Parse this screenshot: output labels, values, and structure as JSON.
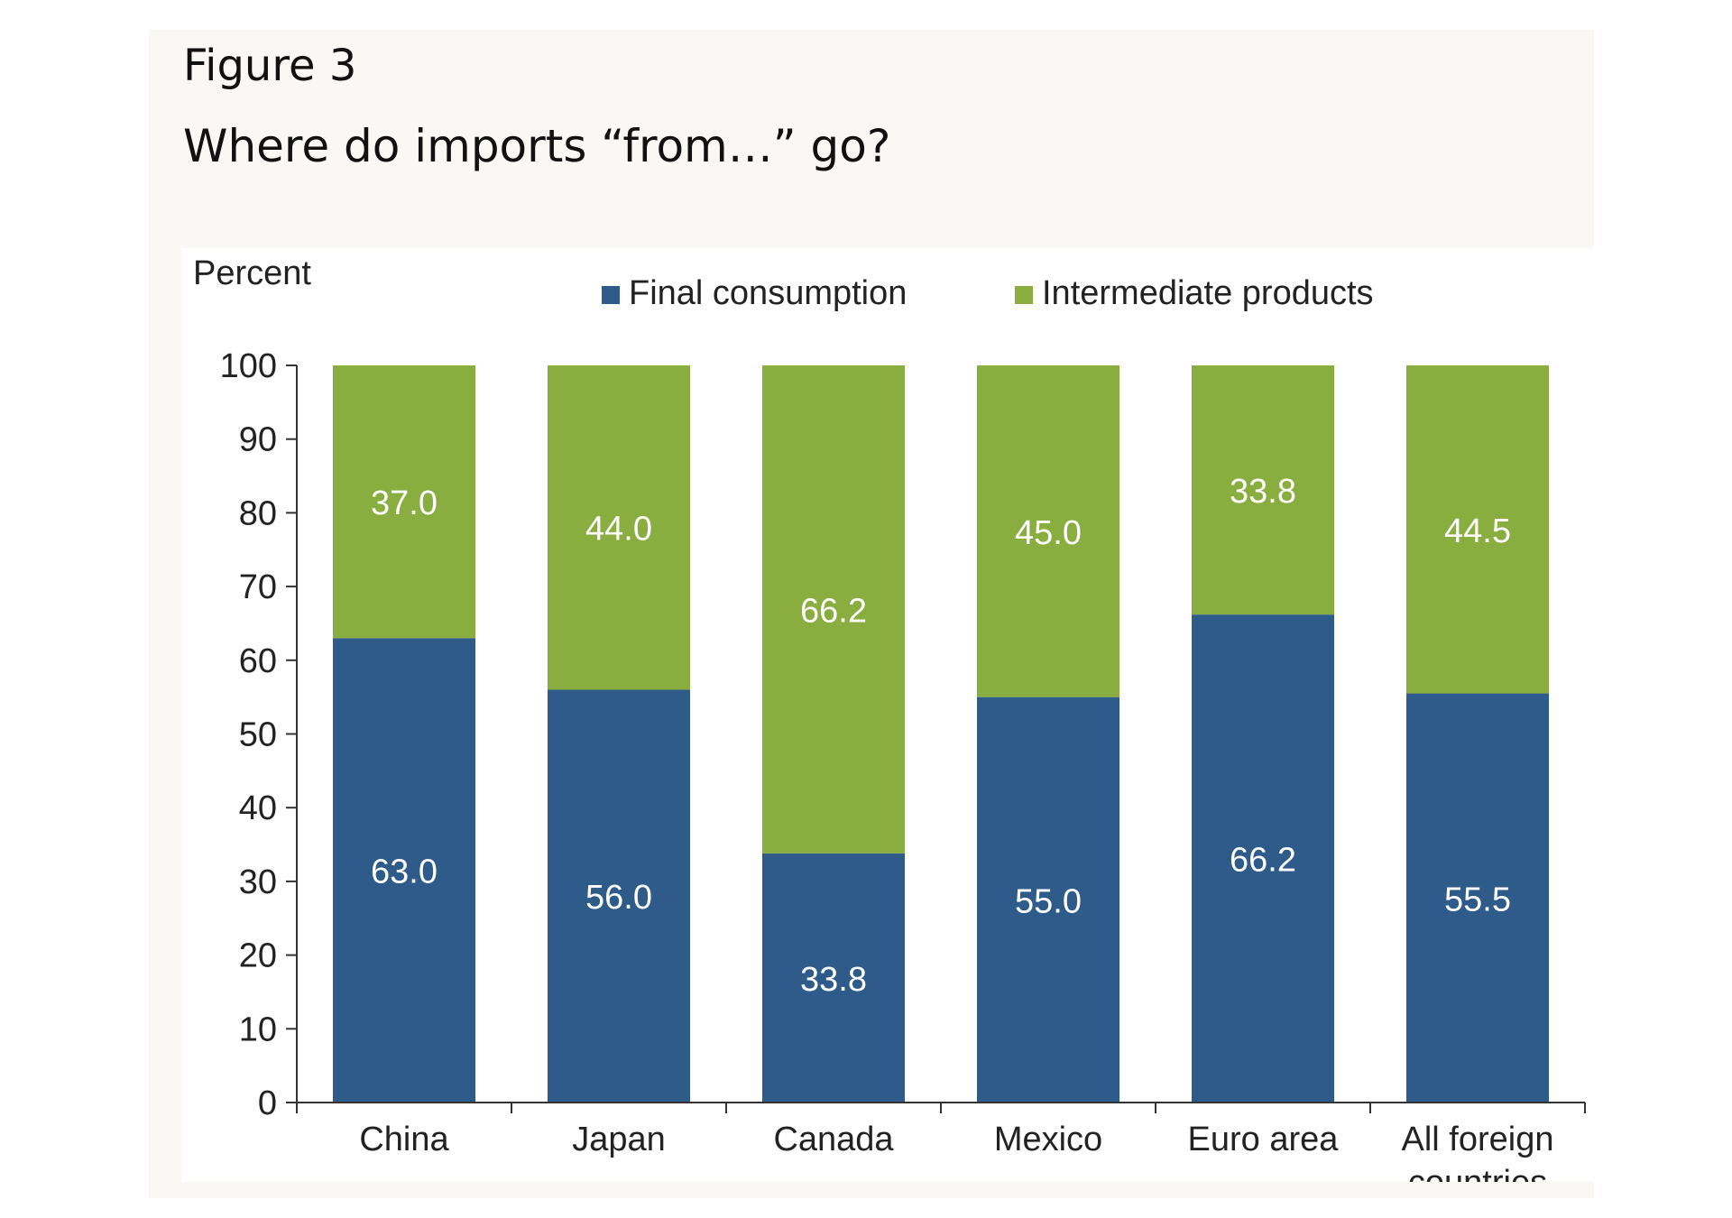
{
  "figure": {
    "label": "Figure 3",
    "title": "Where do imports “from…” go?"
  },
  "chart_data": {
    "type": "bar",
    "stacked": true,
    "ylabel": "Percent",
    "ylim": [
      0,
      100
    ],
    "yticks": [
      0,
      10,
      20,
      30,
      40,
      50,
      60,
      70,
      80,
      90,
      100
    ],
    "categories": [
      "China",
      "Japan",
      "Canada",
      "Mexico",
      "Euro area",
      "All foreign countries"
    ],
    "category_lines": [
      [
        "China"
      ],
      [
        "Japan"
      ],
      [
        "Canada"
      ],
      [
        "Mexico"
      ],
      [
        "Euro area"
      ],
      [
        "All foreign",
        "countries"
      ]
    ],
    "series": [
      {
        "name": "Final consumption",
        "color": "#2e5b8a",
        "values": [
          63.0,
          56.0,
          33.8,
          55.0,
          66.2,
          55.5
        ]
      },
      {
        "name": "Intermediate products",
        "color": "#8aad40",
        "values": [
          37.0,
          44.0,
          66.2,
          45.0,
          33.8,
          44.5
        ]
      }
    ],
    "value_labels": [
      [
        "63.0",
        "56.0",
        "33.8",
        "55.0",
        "66.2",
        "55.5"
      ],
      [
        "37.0",
        "44.0",
        "66.2",
        "45.0",
        "33.8",
        "44.5"
      ]
    ],
    "legend_position": "top-center",
    "grid": false
  }
}
